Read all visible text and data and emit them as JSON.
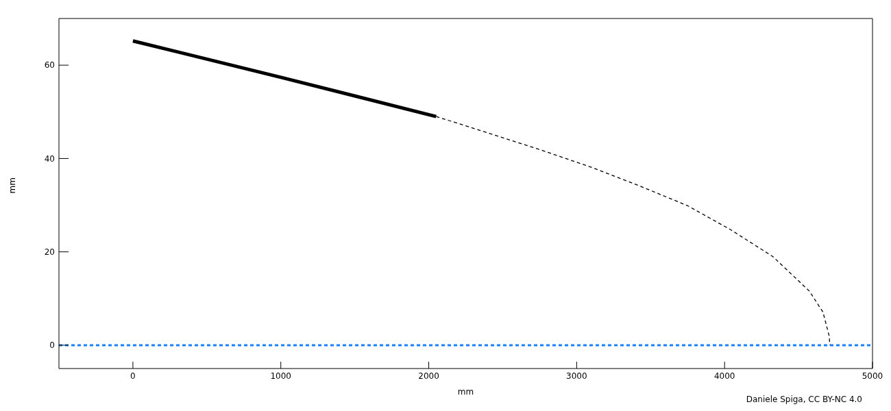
{
  "chart_data": {
    "type": "line",
    "xlabel": "mm",
    "ylabel": "mm",
    "annotations": [
      "Daniele Spiga, CC BY-NC 4.0"
    ],
    "xlim": [
      -500,
      5000
    ],
    "xticks": [
      0,
      1000,
      2000,
      3000,
      4000,
      5000
    ],
    "ylim": [
      -5,
      70
    ],
    "yticks": [
      0,
      20,
      40,
      60
    ],
    "marker": "none",
    "series": [
      {
        "color": "#000000",
        "line_style": "solid",
        "x": [
          0,
          1000,
          2050
        ],
        "values": [
          65.2,
          57.4,
          49.0
        ]
      },
      {
        "color": "#000000",
        "line_style": "dashed",
        "x": [
          2050,
          2370,
          2761,
          3111,
          3420,
          3749,
          4038,
          4326,
          4573,
          4665,
          4707,
          4712
        ],
        "values": [
          49.0,
          45.8,
          41.8,
          38.0,
          34.2,
          29.9,
          24.8,
          19.0,
          11.6,
          7.1,
          2.0,
          0
        ]
      }
    ],
    "ref_lines": [
      {
        "axis": "y",
        "value": 0,
        "color": "#1a80ff",
        "line_style": "dashed"
      }
    ]
  }
}
